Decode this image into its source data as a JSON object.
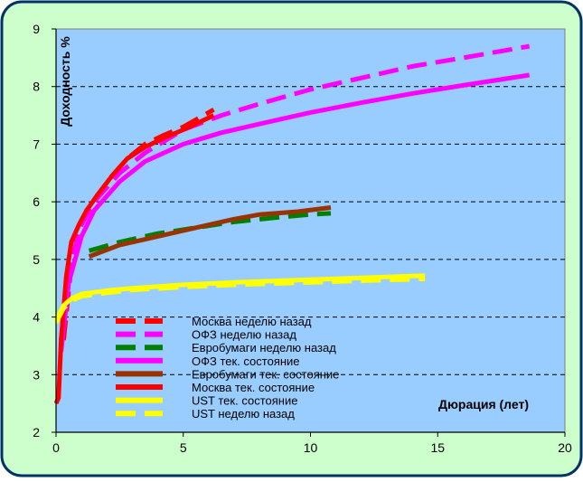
{
  "colors": {
    "background": "#99CCFF",
    "frame": "#CCFFCC",
    "frame_border": "#003366"
  },
  "chart_data": {
    "type": "line",
    "xlabel": "Дюрация (лет)",
    "ylabel": "Доходность %",
    "xlim": [
      0,
      20
    ],
    "ylim": [
      2,
      9
    ],
    "xticks": [
      "0",
      "5",
      "10",
      "15",
      "20"
    ],
    "yticks": [
      "2",
      "3",
      "4",
      "5",
      "6",
      "7",
      "8",
      "9"
    ],
    "grid": "horizontal dashed",
    "legend_position": "bottom-center",
    "series": [
      {
        "name": "Москва неделю назад",
        "color": "#FF0000",
        "style": "dashed",
        "x": [
          0.3,
          0.6,
          0.9,
          1.2,
          1.6,
          2.2,
          2.8,
          3.5,
          4.2,
          5.0,
          6.2
        ],
        "y": [
          3.6,
          4.9,
          5.5,
          5.85,
          6.1,
          6.45,
          6.75,
          7.0,
          7.15,
          7.3,
          7.6
        ]
      },
      {
        "name": "ОФЗ неделю назад",
        "color": "#FF00FF",
        "style": "dashed",
        "x": [
          0.2,
          0.5,
          1.0,
          1.5,
          2.5,
          3.5,
          5.0,
          6.5,
          8.0,
          10.0,
          12.0,
          14.0,
          16.0,
          18.6
        ],
        "y": [
          3.6,
          4.8,
          5.6,
          6.0,
          6.5,
          6.85,
          7.25,
          7.5,
          7.7,
          7.95,
          8.15,
          8.35,
          8.5,
          8.7
        ]
      },
      {
        "name": "Евробумаги неделю назад",
        "color": "#008000",
        "style": "dashed",
        "x": [
          1.3,
          2.5,
          4.0,
          5.5,
          7.0,
          8.5,
          10.0,
          10.8
        ],
        "y": [
          5.15,
          5.3,
          5.45,
          5.55,
          5.65,
          5.72,
          5.78,
          5.8
        ]
      },
      {
        "name": "ОФЗ тек. состояние",
        "color": "#FF00FF",
        "style": "solid",
        "x": [
          0.2,
          0.5,
          1.0,
          1.5,
          2.5,
          3.5,
          5.0,
          6.5,
          8.0,
          10.0,
          12.0,
          14.0,
          16.0,
          18.6
        ],
        "y": [
          3.4,
          4.6,
          5.4,
          5.85,
          6.35,
          6.7,
          7.0,
          7.2,
          7.35,
          7.55,
          7.72,
          7.88,
          8.02,
          8.2
        ]
      },
      {
        "name": "Евробумаги тек. состояние",
        "color": "#993300",
        "style": "solid",
        "x": [
          1.3,
          2.5,
          4.0,
          5.5,
          7.0,
          8.0,
          9.5,
          10.8
        ],
        "y": [
          5.05,
          5.25,
          5.4,
          5.55,
          5.7,
          5.78,
          5.83,
          5.9
        ]
      },
      {
        "name": "Москва тек. состояние",
        "color": "#FF0000",
        "style": "solid",
        "x": [
          0.0,
          0.1,
          0.2,
          0.4,
          0.6,
          0.9,
          1.2,
          1.6,
          2.2,
          2.8,
          3.5,
          4.2,
          5.0,
          6.2
        ],
        "y": [
          2.5,
          2.6,
          3.6,
          4.7,
          5.3,
          5.6,
          5.85,
          6.1,
          6.45,
          6.75,
          6.95,
          7.1,
          7.25,
          7.5
        ]
      },
      {
        "name": "UST тек. состояние",
        "color": "#FFFF00",
        "style": "solid",
        "x": [
          0.0,
          0.3,
          0.6,
          1.0,
          2.0,
          3.0,
          5.0,
          7.0,
          10.0,
          12.0,
          14.5
        ],
        "y": [
          3.95,
          4.2,
          4.32,
          4.4,
          4.46,
          4.5,
          4.56,
          4.6,
          4.65,
          4.68,
          4.72
        ]
      },
      {
        "name": "UST неделю назад",
        "color": "#FFFF00",
        "style": "dashed",
        "x": [
          0.0,
          0.3,
          0.6,
          1.0,
          2.0,
          3.0,
          5.0,
          7.0,
          10.0,
          12.0,
          14.5
        ],
        "y": [
          3.9,
          4.15,
          4.28,
          4.36,
          4.42,
          4.47,
          4.52,
          4.56,
          4.6,
          4.63,
          4.66
        ]
      }
    ]
  }
}
